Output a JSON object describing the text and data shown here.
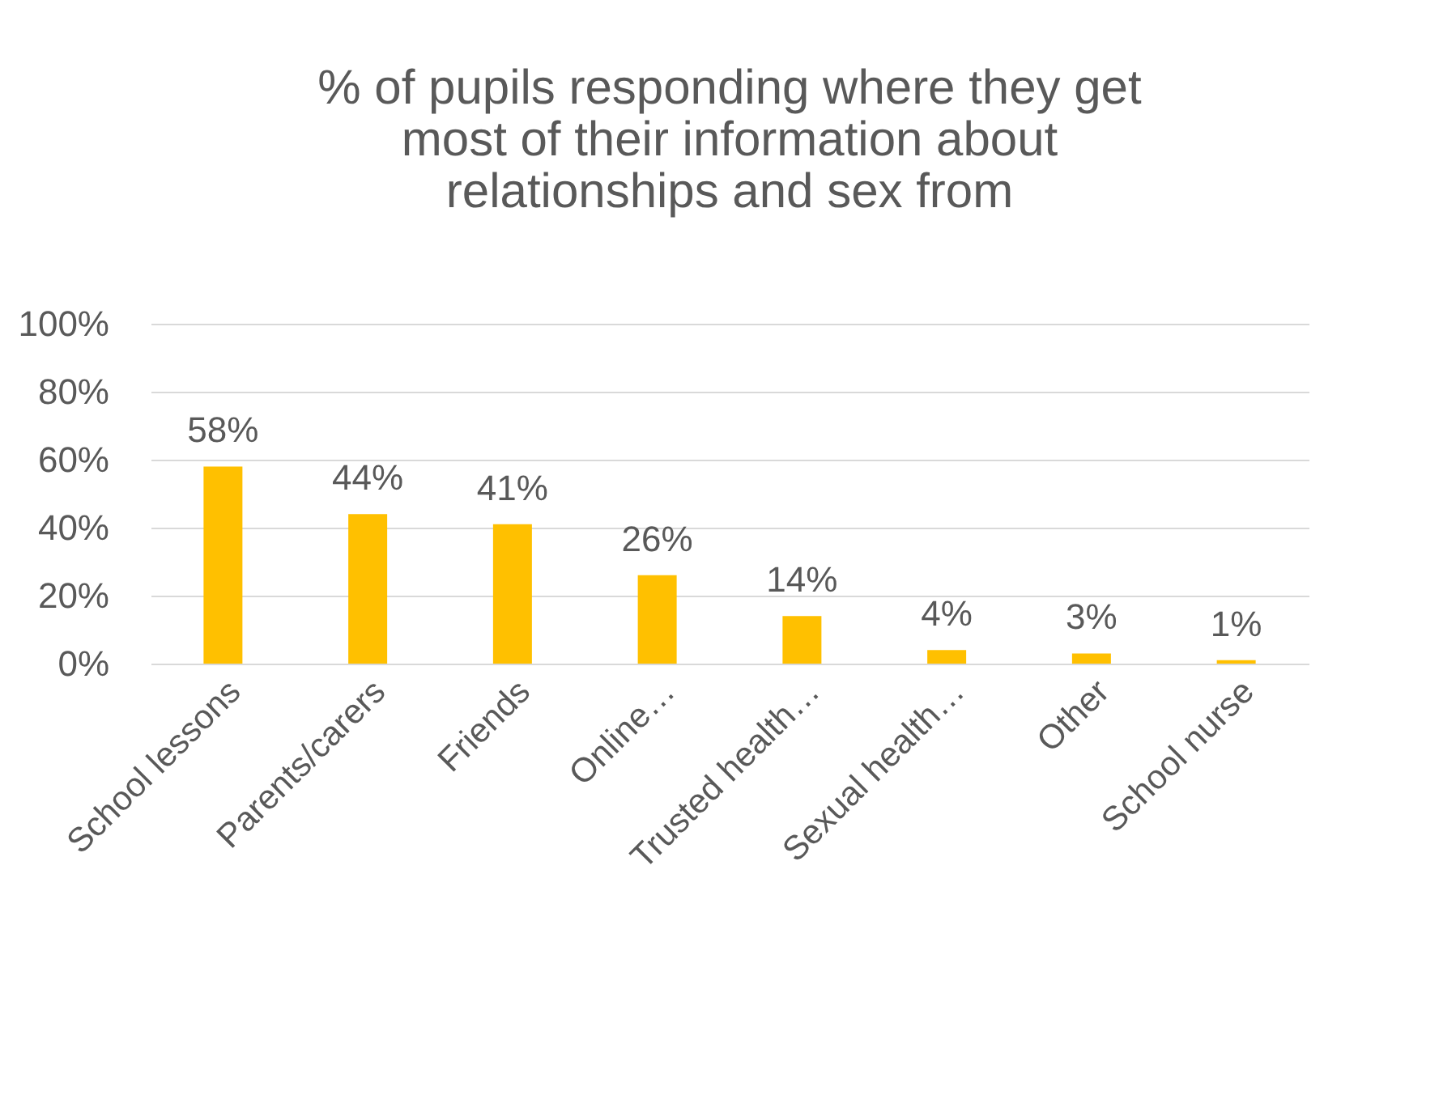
{
  "chart_data": {
    "type": "bar",
    "title": "% of pupils responding where they get most of their information about relationships and sex from",
    "categories": [
      "School lessons",
      "Parents/carers",
      "Friends",
      "Online…",
      "Trusted health…",
      "Sexual health…",
      "Other",
      "School nurse"
    ],
    "values": [
      58,
      44,
      41,
      26,
      14,
      4,
      3,
      1
    ],
    "value_labels": [
      "58%",
      "44%",
      "41%",
      "26%",
      "14%",
      "4%",
      "3%",
      "1%"
    ],
    "color": "#ffc000",
    "ylim": [
      0,
      100
    ],
    "yticks": [
      {
        "value": 0,
        "label": "0%"
      },
      {
        "value": 20,
        "label": "20%"
      },
      {
        "value": 40,
        "label": "40%"
      },
      {
        "value": 60,
        "label": "60%"
      },
      {
        "value": 80,
        "label": "80%"
      },
      {
        "value": 100,
        "label": "100%"
      }
    ],
    "grid": "y"
  }
}
